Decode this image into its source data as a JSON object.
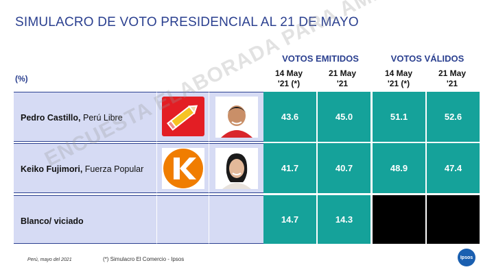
{
  "title": "SIMULACRO DE VOTO PRESIDENCIAL AL 21 DE MAYO",
  "unit_label": "(%)",
  "groups": [
    "VOTOS EMITIDOS",
    "VOTOS VÁLIDOS"
  ],
  "columns": [
    {
      "line1": "14 May",
      "line2": "'21 (*)"
    },
    {
      "line1": "21 May",
      "line2": "'21"
    },
    {
      "line1": "14 May",
      "line2": "'21 (*)"
    },
    {
      "line1": "21 May",
      "line2": "'21"
    }
  ],
  "chart_data": {
    "type": "table",
    "rows": [
      {
        "candidate": "Pedro Castillo,",
        "party": " Perú Libre",
        "values": [
          "43.6",
          "45.0",
          "51.1",
          "52.6"
        ]
      },
      {
        "candidate": "Keiko Fujimori,",
        "party": " Fuerza Popular",
        "values": [
          "41.7",
          "40.7",
          "48.9",
          "47.4"
        ]
      },
      {
        "candidate": "Blanco/ viciado",
        "party": "",
        "values": [
          "14.7",
          "14.3",
          "",
          ""
        ]
      }
    ]
  },
  "footer": {
    "place_date": "Perú, mayo del 2021",
    "note": "(*) Simulacro El Comercio - Ipsos",
    "brand": "Ipsos"
  },
  "watermark": "ENCUESTA ELABORADA PARA AMÉRICA",
  "colors": {
    "teal": "#15a29a",
    "lavender": "#d6dbf4",
    "navy": "#2a3f8f",
    "peru_libre_red": "#e31e24",
    "fuerza_orange": "#f07d00"
  }
}
